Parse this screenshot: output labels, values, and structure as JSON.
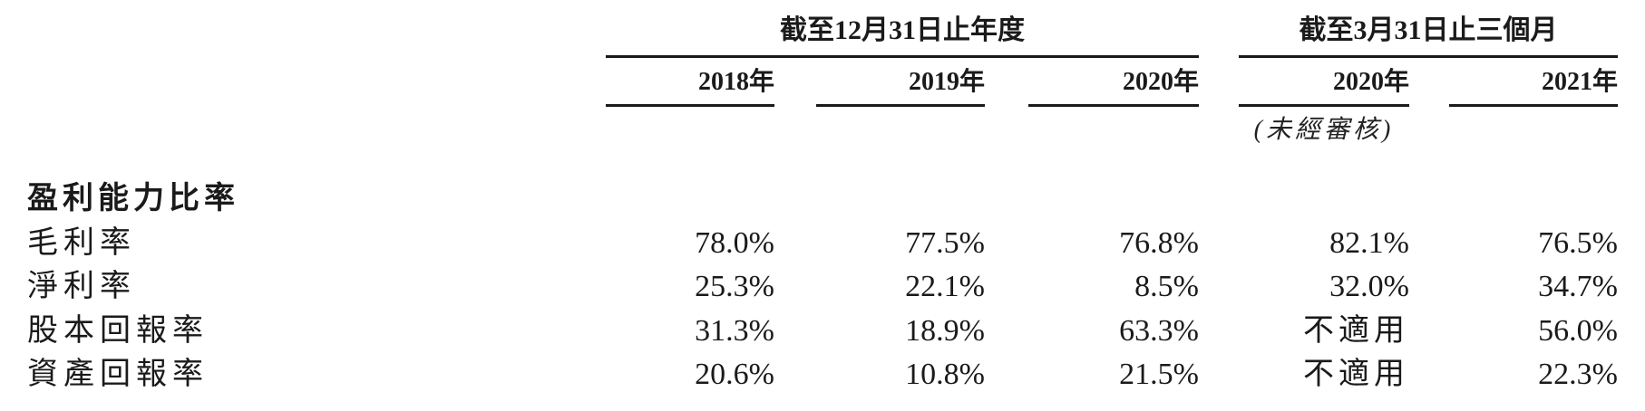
{
  "header": {
    "group_annual": "截至12月31日止年度",
    "group_quarter": "截至3月31日止三個月",
    "years": [
      "2018年",
      "2019年",
      "2020年",
      "2020年",
      "2021年"
    ],
    "unaudited_note": "(未經審核)"
  },
  "section": {
    "title": "盈利能力比率"
  },
  "rows": [
    {
      "label": "毛利率",
      "values": [
        "78.0%",
        "77.5%",
        "76.8%",
        "82.1%",
        "76.5%"
      ]
    },
    {
      "label": "淨利率",
      "values": [
        "25.3%",
        "22.1%",
        "8.5%",
        "32.0%",
        "34.7%"
      ]
    },
    {
      "label": "股本回報率",
      "values": [
        "31.3%",
        "18.9%",
        "63.3%",
        "不適用",
        "56.0%"
      ]
    },
    {
      "label": "資產回報率",
      "values": [
        "20.6%",
        "10.8%",
        "21.5%",
        "不適用",
        "22.3%"
      ]
    }
  ]
}
